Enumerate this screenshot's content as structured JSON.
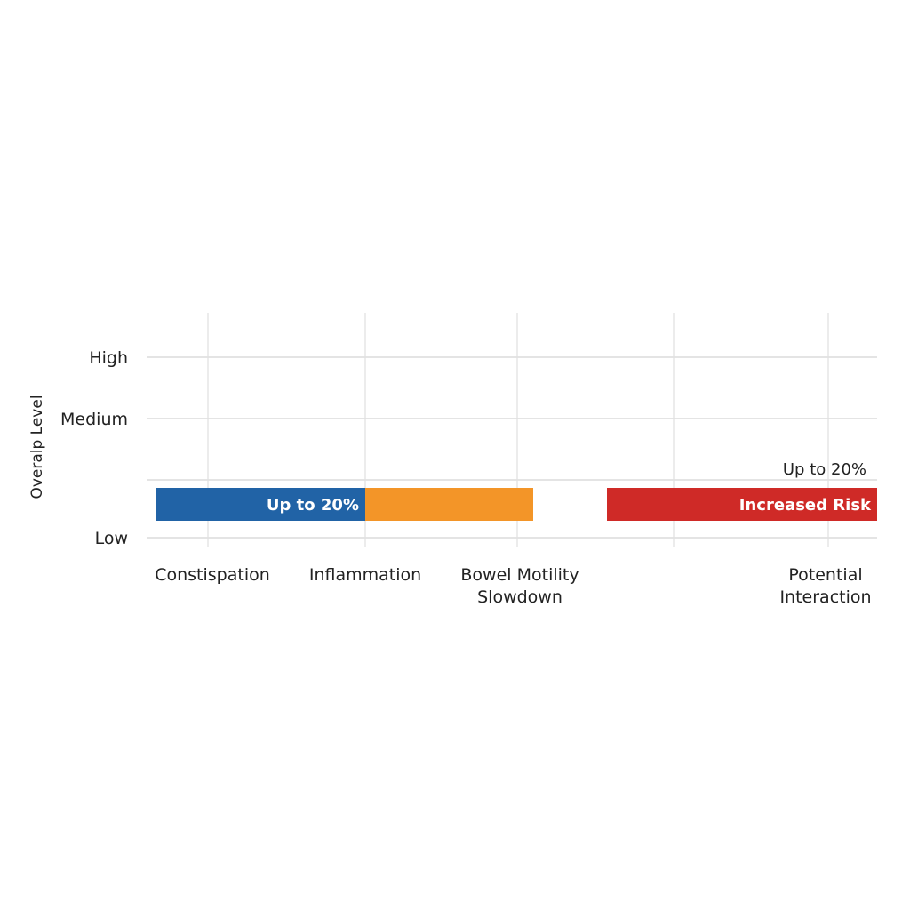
{
  "chart_data": {
    "type": "bar",
    "orientation": "horizontal-stacked",
    "title": "",
    "xlabel": "",
    "ylabel": "Overalp Level",
    "y_ticks": [
      "High",
      "Medium",
      "",
      "Low"
    ],
    "x_categories": [
      [
        "Constispation"
      ],
      [
        "Inflammation"
      ],
      [
        "Bowel Motility",
        "Slowdown"
      ],
      [
        ""
      ],
      [
        "Potential",
        "Interaction"
      ]
    ],
    "segments": [
      {
        "category": "Constispation",
        "label": "Up to 20%",
        "color": "#2163a6"
      },
      {
        "category": "Inflammation / Bowel Motility Slowdown",
        "label": "",
        "color": "#f39528"
      },
      {
        "category": "Potential Interaction",
        "label": "Increased Risk",
        "color": "#cf2a27"
      }
    ],
    "annotations": [
      "Up to 20%"
    ],
    "level": "Low",
    "grid": true,
    "legend": "none"
  }
}
